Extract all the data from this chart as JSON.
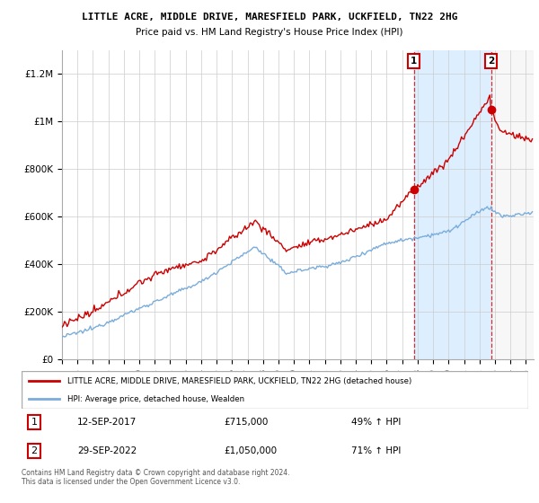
{
  "title": "LITTLE ACRE, MIDDLE DRIVE, MARESFIELD PARK, UCKFIELD, TN22 2HG",
  "subtitle": "Price paid vs. HM Land Registry's House Price Index (HPI)",
  "ylim": [
    0,
    1300000
  ],
  "yticks": [
    0,
    200000,
    400000,
    600000,
    800000,
    1000000,
    1200000
  ],
  "ytick_labels": [
    "£0",
    "£200K",
    "£400K",
    "£600K",
    "£800K",
    "£1M",
    "£1.2M"
  ],
  "legend_line1": "LITTLE ACRE, MIDDLE DRIVE, MARESFIELD PARK, UCKFIELD, TN22 2HG (detached house)",
  "legend_line2": "HPI: Average price, detached house, Wealden",
  "annotation1_label": "1",
  "annotation1_date": "12-SEP-2017",
  "annotation1_price": "£715,000",
  "annotation1_hpi": "49% ↑ HPI",
  "annotation2_label": "2",
  "annotation2_date": "29-SEP-2022",
  "annotation2_price": "£1,050,000",
  "annotation2_hpi": "71% ↑ HPI",
  "footer": "Contains HM Land Registry data © Crown copyright and database right 2024.\nThis data is licensed under the Open Government Licence v3.0.",
  "red_color": "#cc0000",
  "blue_color": "#7aaddb",
  "shade_color": "#ddeeff",
  "annotation_box_color": "#cc0000",
  "background_color": "#ffffff",
  "grid_color": "#cccccc",
  "sale1_year": 2017.75,
  "sale1_val": 715000,
  "sale2_year": 2022.75,
  "sale2_val": 1050000
}
